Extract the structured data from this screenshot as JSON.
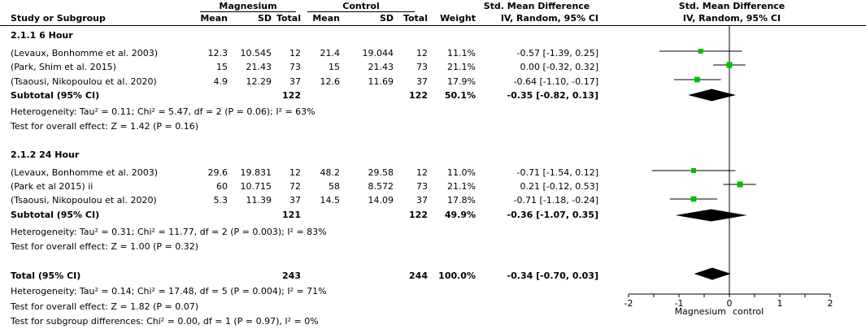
{
  "headers": {
    "group1": "Magnesium",
    "group2": "Control",
    "smd_group": "Std. Mean Difference",
    "smd_sub": "IV, Random, 95% CI",
    "plot_group": "Std. Mean Difference",
    "plot_sub": "IV, Random, 95% CI",
    "study": "Study or Subgroup",
    "mean": "Mean",
    "sd": "SD",
    "total": "Total",
    "weight": "Weight"
  },
  "subgroups": [
    {
      "title": "2.1.1 6 Hour",
      "studies": [
        {
          "name": "(Levaux, Bonhomme et al. 2003)",
          "m1": "12.3",
          "sd1": "10.545",
          "n1": "12",
          "m2": "21.4",
          "sd2": "19.044",
          "n2": "12",
          "weight": "11.1%",
          "ci": "-0.57 [-1.39, 0.25]"
        },
        {
          "name": "(Park, Shim et al. 2015)",
          "m1": "15",
          "sd1": "21.43",
          "n1": "73",
          "m2": "15",
          "sd2": "21.43",
          "n2": "73",
          "weight": "21.1%",
          "ci": "0.00 [-0.32, 0.32]"
        },
        {
          "name": "(Tsaousi, Nikopoulou et al. 2020)",
          "m1": "4.9",
          "sd1": "12.29",
          "n1": "37",
          "m2": "12.6",
          "sd2": "11.69",
          "n2": "37",
          "weight": "17.9%",
          "ci": "-0.64 [-1.10, -0.17]"
        }
      ],
      "subtotal": {
        "label": "Subtotal (95% CI)",
        "n1": "122",
        "n2": "122",
        "weight": "50.1%",
        "ci": "-0.35 [-0.82, 0.13]"
      },
      "heterogeneity": "Heterogeneity: Tau² = 0.11; Chi² = 5.47, df = 2 (P = 0.06); I² = 63%",
      "overall": "Test for overall effect: Z = 1.42 (P = 0.16)"
    },
    {
      "title": "2.1.2 24 Hour",
      "studies": [
        {
          "name": "(Levaux, Bonhomme et al. 2003)",
          "m1": "29.6",
          "sd1": "19.831",
          "n1": "12",
          "m2": "48.2",
          "sd2": "29.58",
          "n2": "12",
          "weight": "11.0%",
          "ci": "-0.71 [-1.54, 0.12]"
        },
        {
          "name": "(Park et al 2015) ii",
          "m1": "60",
          "sd1": "10.715",
          "n1": "72",
          "m2": "58",
          "sd2": "8.572",
          "n2": "73",
          "weight": "21.1%",
          "ci": "0.21 [-0.12, 0.53]"
        },
        {
          "name": "(Tsaousi, Nikopoulou et al. 2020)",
          "m1": "5.3",
          "sd1": "11.39",
          "n1": "37",
          "m2": "14.5",
          "sd2": "14.09",
          "n2": "37",
          "weight": "17.8%",
          "ci": "-0.71 [-1.18, -0.24]"
        }
      ],
      "subtotal": {
        "label": "Subtotal (95% CI)",
        "n1": "121",
        "n2": "122",
        "weight": "49.9%",
        "ci": "-0.36 [-1.07, 0.35]"
      },
      "heterogeneity": "Heterogeneity: Tau² = 0.31; Chi² = 11.77, df = 2 (P = 0.003); I² = 83%",
      "overall": "Test for overall effect: Z = 1.00 (P = 0.32)"
    }
  ],
  "total": {
    "label": "Total (95% CI)",
    "n1": "243",
    "n2": "244",
    "weight": "100.0%",
    "ci": "-0.34 [-0.70, 0.03]",
    "heterogeneity": "Heterogeneity: Tau² = 0.14; Chi² = 17.48, df = 5 (P = 0.004); I² = 71%",
    "overall": "Test for overall effect: Z = 1.82 (P = 0.07)",
    "subgroup_diff": "Test for subgroup differences: Chi² = 0.00, df = 1 (P = 0.97), I² = 0%"
  },
  "axis": {
    "ticks": [
      "-2",
      "-1",
      "0",
      "1",
      "2"
    ],
    "left_label": "Magnesium",
    "right_label": "control"
  },
  "colors": {
    "square": "#00c000",
    "diamond": "#000000"
  },
  "chart_data": {
    "type": "forest",
    "xlim": [
      -2,
      2
    ],
    "ticks": [
      -2,
      -1,
      0,
      1,
      2
    ],
    "studies": [
      {
        "label": "(Levaux, Bonhomme et al. 2003)",
        "est": -0.57,
        "lo": -1.39,
        "hi": 0.25,
        "weight": 11.1
      },
      {
        "label": "(Park, Shim et al. 2015)",
        "est": 0.0,
        "lo": -0.32,
        "hi": 0.32,
        "weight": 21.1
      },
      {
        "label": "(Tsaousi, Nikopoulou et al. 2020)",
        "est": -0.64,
        "lo": -1.1,
        "hi": -0.17,
        "weight": 17.9
      },
      {
        "label": "(Levaux, Bonhomme et al. 2003)",
        "est": -0.71,
        "lo": -1.54,
        "hi": 0.12,
        "weight": 11.0
      },
      {
        "label": "(Park et al 2015) ii",
        "est": 0.21,
        "lo": -0.12,
        "hi": 0.53,
        "weight": 21.1
      },
      {
        "label": "(Tsaousi, Nikopoulou et al. 2020)",
        "est": -0.71,
        "lo": -1.18,
        "hi": -0.24,
        "weight": 17.8
      }
    ],
    "pooled": [
      {
        "label": "Subtotal (95% CI)",
        "est": -0.35,
        "lo": -0.82,
        "hi": 0.13
      },
      {
        "label": "Subtotal (95% CI)",
        "est": -0.36,
        "lo": -1.07,
        "hi": 0.35
      },
      {
        "label": "Total (95% CI)",
        "est": -0.34,
        "lo": -0.7,
        "hi": 0.03
      }
    ]
  }
}
